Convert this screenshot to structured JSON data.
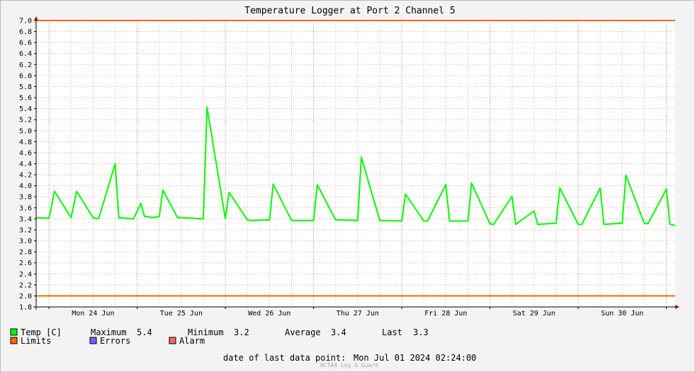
{
  "chart_data": {
    "type": "line",
    "title": "Temperature Logger at Port 2 Channel 5",
    "ylim": [
      1.8,
      7.0
    ],
    "y_ticks": [
      "1.8",
      "2.0",
      "2.2",
      "2.4",
      "2.6",
      "2.8",
      "3.0",
      "3.2",
      "3.4",
      "3.6",
      "3.8",
      "4.0",
      "4.2",
      "4.4",
      "4.6",
      "4.8",
      "5.0",
      "5.2",
      "5.4",
      "5.6",
      "5.8",
      "6.0",
      "6.2",
      "6.4",
      "6.6",
      "6.8",
      "7.0"
    ],
    "x_range": [
      "2024-06-23 20:30",
      "2024-07-01 02:24"
    ],
    "x_ticks": [
      "Mon 24 Jun",
      "Tue 25 Jun",
      "Wed 26 Jun",
      "Thu 27 Jun",
      "Fri 28 Jun",
      "Sat 29 Jun",
      "Sun 30 Jun"
    ],
    "grid": true,
    "series": [
      {
        "name": "Temp [C]",
        "color": "#00ff00",
        "x": [
          "2024-06-23 20:30",
          "2024-06-24 00:00",
          "2024-06-24 01:30",
          "2024-06-24 06:00",
          "2024-06-24 07:30",
          "2024-06-24 12:00",
          "2024-06-24 13:30",
          "2024-06-24 18:00",
          "2024-06-24 19:00",
          "2024-06-24 23:00",
          "2024-06-25 01:00",
          "2024-06-25 02:00",
          "2024-06-25 03:00",
          "2024-06-25 04:00",
          "2024-06-25 05:00",
          "2024-06-25 06:00",
          "2024-06-25 07:00",
          "2024-06-25 11:00",
          "2024-06-25 12:00",
          "2024-06-25 18:00",
          "2024-06-25 19:00",
          "2024-06-26 00:00",
          "2024-06-26 01:00",
          "2024-06-26 06:00",
          "2024-06-26 07:00",
          "2024-06-26 12:00",
          "2024-06-26 13:00",
          "2024-06-26 18:00",
          "2024-06-26 19:00",
          "2024-06-27 00:00",
          "2024-06-27 01:00",
          "2024-06-27 06:00",
          "2024-06-27 07:00",
          "2024-06-27 12:00",
          "2024-06-27 13:00",
          "2024-06-27 18:00",
          "2024-06-27 19:00",
          "2024-06-28 00:00",
          "2024-06-28 01:00",
          "2024-06-28 06:00",
          "2024-06-28 07:00",
          "2024-06-28 12:00",
          "2024-06-28 13:00",
          "2024-06-28 18:00",
          "2024-06-28 19:00",
          "2024-06-29 00:00",
          "2024-06-29 01:00",
          "2024-06-29 06:00",
          "2024-06-29 07:00",
          "2024-06-29 12:00",
          "2024-06-29 13:00",
          "2024-06-29 18:00",
          "2024-06-29 19:00",
          "2024-06-30 00:00",
          "2024-06-30 01:00",
          "2024-06-30 06:00",
          "2024-06-30 07:00",
          "2024-06-30 12:00",
          "2024-06-30 13:00",
          "2024-06-30 18:00",
          "2024-06-30 19:00",
          "2024-07-01 00:00",
          "2024-07-01 01:00",
          "2024-07-01 02:24"
        ],
        "y": [
          3.42,
          3.41,
          3.9,
          3.42,
          3.9,
          3.42,
          3.4,
          4.4,
          3.42,
          3.4,
          3.68,
          3.44,
          3.44,
          3.42,
          3.43,
          3.44,
          3.92,
          3.42,
          3.42,
          3.4,
          5.43,
          3.4,
          3.88,
          3.38,
          3.37,
          3.38,
          4.03,
          3.37,
          3.37,
          3.37,
          4.02,
          3.38,
          3.38,
          3.37,
          4.52,
          3.37,
          3.37,
          3.36,
          3.85,
          3.36,
          3.36,
          4.02,
          3.36,
          3.36,
          4.05,
          3.31,
          3.3,
          3.81,
          3.3,
          3.54,
          3.3,
          3.32,
          3.96,
          3.3,
          3.3,
          3.96,
          3.3,
          3.32,
          4.19,
          3.32,
          3.31,
          3.94,
          3.3,
          3.28
        ]
      }
    ],
    "limits": {
      "name": "Limits",
      "color": "#ff6600",
      "values": [
        2.0,
        7.0
      ]
    }
  },
  "legend": {
    "temp_label": "Temp [C]",
    "maximum_label": "Maximum",
    "maximum_value": "5.4",
    "minimum_label": "Minimum",
    "minimum_value": "3.2",
    "average_label": "Average",
    "average_value": "3.4",
    "last_label": "Last",
    "last_value": "3.3",
    "limits_label": "Limits",
    "errors_label": "Errors",
    "alarm_label": "Alarm",
    "colors": {
      "temp": "#00ff00",
      "limits": "#ff6600",
      "errors": "#6666ff",
      "alarm": "#ff6666"
    }
  },
  "footer": {
    "last_point_label": "date of last data point:",
    "last_point_value": "Mon Jul 01 2024 02:24:00",
    "watermark": "OCTA4 Log & Guard"
  }
}
